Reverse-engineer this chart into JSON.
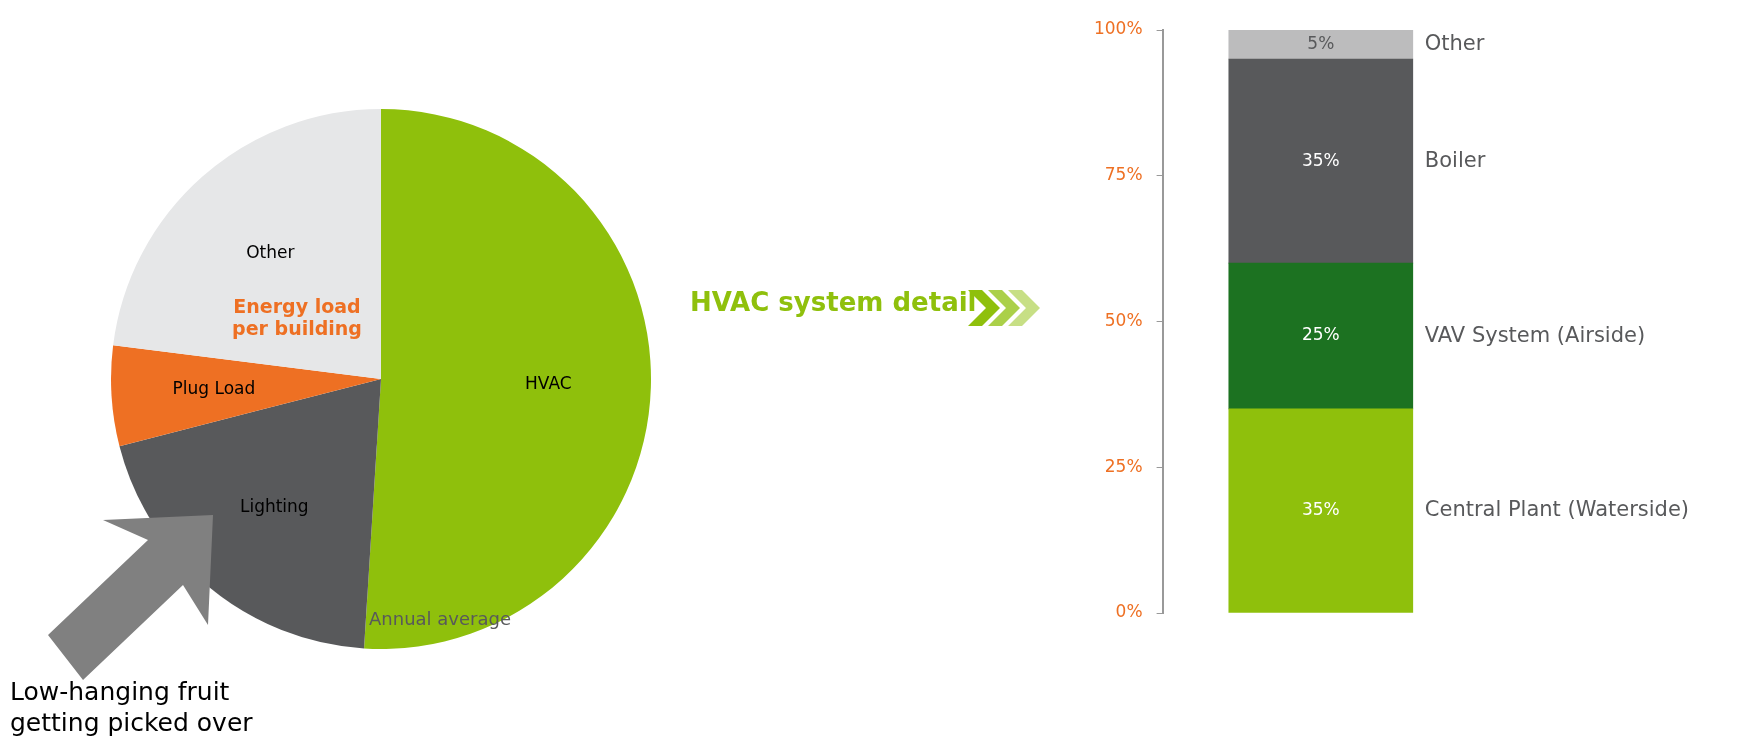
{
  "chart_data": [
    {
      "type": "pie",
      "categories": [
        "HVAC",
        "Lighting",
        "Plug Load",
        "Other"
      ],
      "values": [
        51,
        20,
        6,
        23
      ],
      "colors": [
        "#8fc00c",
        "#58595b",
        "#ee7023",
        "#e6e7e8"
      ],
      "annotations": [
        "Energy load per building",
        "Annual average",
        "Low-hanging fruit getting picked over"
      ]
    },
    {
      "type": "bar",
      "stacked": true,
      "title": "HVAC system detail",
      "categories": [
        null
      ],
      "series": [
        {
          "name": "Central Plant (Waterside)",
          "color": "#8fc00c",
          "values": [
            35
          ],
          "value_labels": [
            "35%"
          ]
        },
        {
          "name": "VAV System (Airside)",
          "color": "#1c7221",
          "values": [
            25
          ],
          "value_labels": [
            "25%"
          ]
        },
        {
          "name": "Boiler",
          "color": "#58595b",
          "values": [
            35
          ],
          "value_labels": [
            "35%"
          ]
        },
        {
          "name": "Other",
          "color": "#bcbcbd",
          "values": [
            5
          ],
          "value_labels": [
            "5%"
          ]
        }
      ],
      "ylim": [
        0,
        100
      ],
      "yticks": [
        {
          "value": 0,
          "label": "0%"
        },
        {
          "value": 25,
          "label": "25%"
        },
        {
          "value": 50,
          "label": "50%"
        },
        {
          "value": 75,
          "label": "75%"
        },
        {
          "value": 100,
          "label": "100%"
        }
      ]
    }
  ]
}
